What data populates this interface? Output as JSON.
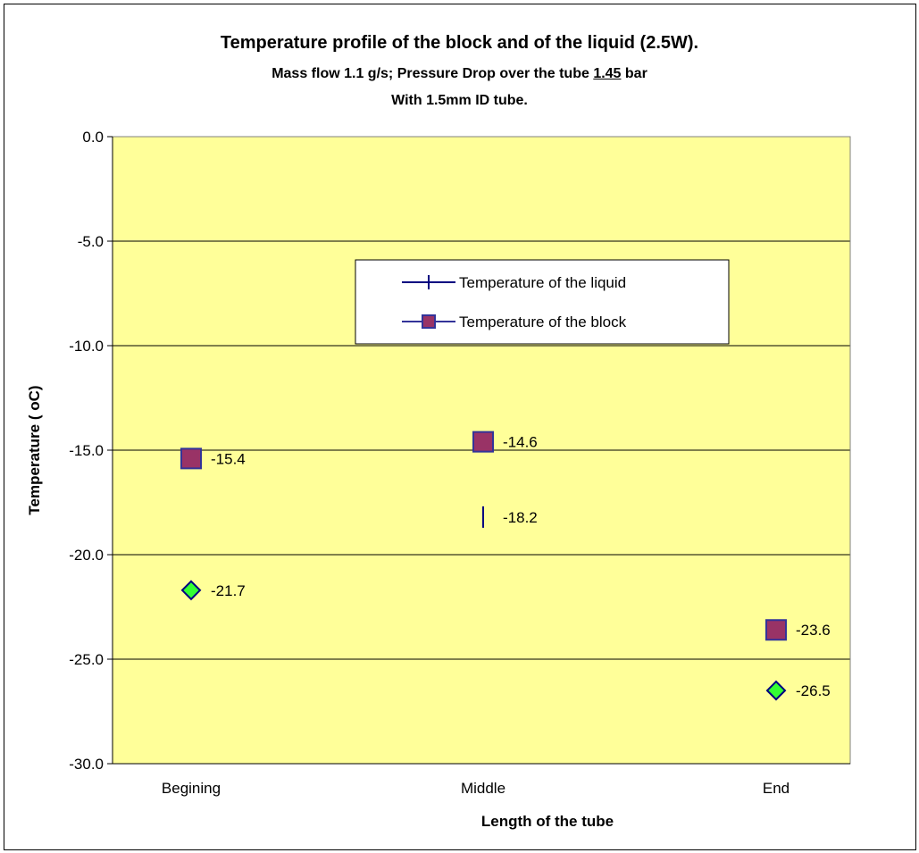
{
  "chart_data": {
    "type": "scatter",
    "title": "Temperature profile of the block and of the liquid (2.5W).",
    "subtitle_line1_before": "Mass flow 1.1 g/s; Pressure Drop over the tube ",
    "subtitle_line1_underlined": "1.45",
    "subtitle_line1_after": " bar",
    "subtitle_line2": "With 1.5mm ID tube.",
    "xlabel": "Length of the tube",
    "ylabel": "Temperature ( oC)",
    "categories": [
      "Begining",
      "Middle",
      "End"
    ],
    "ylim": [
      -30,
      0
    ],
    "ytick_step": 5,
    "yticks": [
      "0.0",
      "-5.0",
      "-10.0",
      "-15.0",
      "-20.0",
      "-25.0",
      "-30.0"
    ],
    "grid": true,
    "plot_background": "#FFFF99",
    "legend_position": "upper-center",
    "series": [
      {
        "name": "Temperature of the liquid",
        "marker": "dash",
        "color": "#000080",
        "values": [
          null,
          -18.2,
          null
        ],
        "labels": [
          "",
          "-18.2",
          ""
        ],
        "in_legend": true
      },
      {
        "name": "Temperature of the block",
        "marker": "square",
        "color": "#993366",
        "edge_color": "#333399",
        "values": [
          -15.4,
          -14.6,
          -23.6
        ],
        "labels": [
          "-15.4",
          "-14.6",
          "-23.6"
        ],
        "in_legend": true
      },
      {
        "marker": "diamond",
        "color": "#33FF33",
        "edge_color": "#000080",
        "values": [
          -21.7,
          null,
          -26.5
        ],
        "labels": [
          "-21.7",
          "",
          "-26.5"
        ],
        "in_legend": false
      }
    ]
  }
}
